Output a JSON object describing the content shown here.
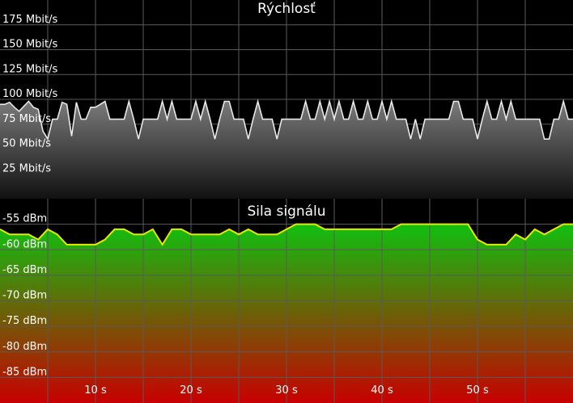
{
  "speed_chart": {
    "title": "Rýchlosť",
    "y_ticks": [
      {
        "value": 175,
        "label": "175 Mbit/s"
      },
      {
        "value": 150,
        "label": "150 Mbit/s"
      },
      {
        "value": 125,
        "label": "125 Mbit/s"
      },
      {
        "value": 100,
        "label": "100 Mbit/s"
      },
      {
        "value": 75,
        "label": "75 Mbit/s"
      },
      {
        "value": 50,
        "label": "50 Mbit/s"
      },
      {
        "value": 25,
        "label": "25 Mbit/s"
      }
    ],
    "colors": {
      "line": "#e8e8e8",
      "fill_top": "#7a7a7a",
      "fill_bottom": "#111111",
      "background": "#000000"
    }
  },
  "signal_chart": {
    "title": "Sila signálu",
    "y_ticks": [
      {
        "value": -55,
        "label": "-55 dBm"
      },
      {
        "value": -60,
        "label": "-60 dBm"
      },
      {
        "value": -65,
        "label": "-65 dBm"
      },
      {
        "value": -70,
        "label": "-70 dBm"
      },
      {
        "value": -75,
        "label": "-75 dBm"
      },
      {
        "value": -80,
        "label": "-80 dBm"
      },
      {
        "value": -85,
        "label": "-85 dBm"
      }
    ],
    "x_ticks": [
      {
        "value": 10,
        "label": "10 s"
      },
      {
        "value": 20,
        "label": "20 s"
      },
      {
        "value": 30,
        "label": "30 s"
      },
      {
        "value": 40,
        "label": "40 s"
      },
      {
        "value": 50,
        "label": "50 s"
      }
    ],
    "colors": {
      "line": "#e8e800",
      "fill_top": "#10c010",
      "fill_bottom": "#c80000",
      "background": "#000000"
    }
  },
  "chart_data": [
    {
      "type": "line",
      "title": "Rýchlosť",
      "ylim": [
        0,
        200
      ],
      "xlim": [
        0,
        60
      ],
      "unit": "Mbit/s",
      "grid": true,
      "x": [
        0,
        0.5,
        1,
        1.5,
        2,
        2.5,
        3,
        3.5,
        4,
        4.5,
        5,
        5.5,
        6,
        6.5,
        7,
        7.5,
        8,
        8.5,
        9,
        9.5,
        10,
        10.5,
        11,
        11.5,
        12,
        12.5,
        13,
        13.5,
        14,
        14.5,
        15,
        15.5,
        16,
        16.5,
        17,
        17.5,
        18,
        18.5,
        19,
        19.5,
        20,
        20.5,
        21,
        21.5,
        22,
        22.5,
        23,
        23.5,
        24,
        24.5,
        25,
        25.5,
        26,
        26.5,
        27,
        27.5,
        28,
        28.5,
        29,
        29.5,
        30,
        30.5,
        31,
        31.5,
        32,
        32.5,
        33,
        33.5,
        34,
        34.5,
        35,
        35.5,
        36,
        36.5,
        37,
        37.5,
        38,
        38.5,
        39,
        39.5,
        40,
        40.5,
        41,
        41.5,
        42,
        42.5,
        43,
        43.5,
        44,
        44.5,
        45,
        45.5,
        46,
        46.5,
        47,
        47.5,
        48,
        48.5,
        49,
        49.5,
        50,
        50.5,
        51,
        51.5,
        52,
        52.5,
        53,
        53.5,
        54,
        54.5,
        55,
        55.5,
        56,
        56.5,
        57,
        57.5,
        58,
        58.5,
        59,
        59.5,
        60
      ],
      "y": [
        95,
        95,
        97,
        92,
        88,
        93,
        98,
        92,
        90,
        68,
        60,
        80,
        80,
        97,
        95,
        63,
        97,
        80,
        80,
        92,
        92,
        95,
        98,
        80,
        80,
        80,
        80,
        98,
        80,
        60,
        80,
        80,
        80,
        80,
        98,
        80,
        98,
        80,
        80,
        80,
        80,
        98,
        80,
        98,
        80,
        60,
        80,
        98,
        98,
        80,
        80,
        80,
        60,
        80,
        98,
        80,
        80,
        80,
        60,
        80,
        80,
        80,
        80,
        80,
        98,
        80,
        80,
        98,
        80,
        98,
        80,
        98,
        80,
        80,
        98,
        80,
        80,
        98,
        80,
        80,
        98,
        80,
        98,
        80,
        80,
        80,
        60,
        80,
        60,
        80,
        80,
        80,
        80,
        80,
        80,
        98,
        98,
        80,
        80,
        80,
        60,
        80,
        98,
        80,
        80,
        98,
        80,
        98,
        80,
        80,
        80,
        80,
        80,
        80,
        60,
        60,
        80,
        80,
        98,
        80,
        80
      ]
    },
    {
      "type": "area",
      "title": "Sila signálu",
      "ylim": [
        -90,
        -50
      ],
      "xlim": [
        0,
        60
      ],
      "unit": "dBm",
      "grid": true,
      "x": [
        0,
        1,
        2,
        3,
        4,
        5,
        6,
        7,
        8,
        9,
        10,
        11,
        12,
        13,
        14,
        15,
        16,
        17,
        18,
        19,
        20,
        21,
        22,
        23,
        24,
        25,
        26,
        27,
        28,
        29,
        30,
        31,
        32,
        33,
        34,
        35,
        36,
        37,
        38,
        39,
        40,
        41,
        42,
        43,
        44,
        45,
        46,
        47,
        48,
        49,
        50,
        51,
        52,
        53,
        54,
        55,
        56,
        57,
        58,
        59,
        60
      ],
      "y": [
        -56,
        -57,
        -57,
        -57,
        -58,
        -56,
        -57,
        -59,
        -59,
        -59,
        -59,
        -58,
        -56,
        -56,
        -57,
        -57,
        -56,
        -59,
        -56,
        -56,
        -57,
        -57,
        -57,
        -57,
        -56,
        -57,
        -56,
        -57,
        -57,
        -57,
        -56,
        -55,
        -55,
        -55,
        -56,
        -56,
        -56,
        -56,
        -56,
        -56,
        -56,
        -56,
        -55,
        -55,
        -55,
        -55,
        -55,
        -55,
        -55,
        -55,
        -58,
        -59,
        -59,
        -59,
        -57,
        -58,
        -56,
        -57,
        -56,
        -55,
        -55
      ]
    }
  ]
}
